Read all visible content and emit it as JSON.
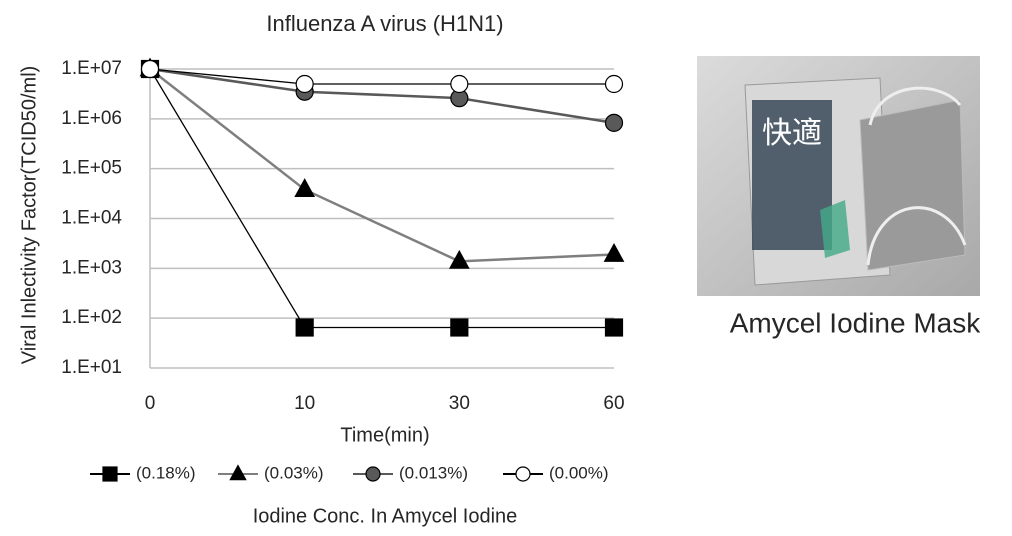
{
  "chart_data": {
    "type": "line",
    "title": "Influenza A virus (H1N1)",
    "x_label": "Time(min)",
    "y_label": "Viral Inlectivity Factor(TCID50/ml)",
    "legend_title": "Iodine Conc. In Amycel Iodine",
    "categories": [
      "0",
      "10",
      "30",
      "60"
    ],
    "log_scale": true,
    "grid": true,
    "legend": "bottom",
    "ylim": [
      10,
      10000000
    ],
    "yticks": [
      {
        "value": 10,
        "label": "1.E+01"
      },
      {
        "value": 100,
        "label": "1.E+02"
      },
      {
        "value": 1000,
        "label": "1.E+03"
      },
      {
        "value": 10000,
        "label": "1.E+04"
      },
      {
        "value": 100000,
        "label": "1.E+05"
      },
      {
        "value": 1000000,
        "label": "1.E+06"
      },
      {
        "value": 10000000,
        "label": "1.E+07"
      }
    ],
    "series": [
      {
        "name": "(0.18%)",
        "color": "#000000",
        "marker": "square",
        "marker_fill": "#000000",
        "values": [
          10000000,
          65,
          65,
          65
        ]
      },
      {
        "name": "(0.03%)",
        "color": "#7f7f7f",
        "marker": "triangle",
        "marker_fill": "#000000",
        "values": [
          10000000,
          38000,
          1380,
          1900
        ]
      },
      {
        "name": "(0.013%)",
        "color": "#595959",
        "marker": "circle",
        "marker_fill": "#595959",
        "values": [
          10000000,
          3500000,
          2600000,
          830000
        ]
      },
      {
        "name": "(0.00%)",
        "color": "#000000",
        "marker": "circle",
        "marker_fill": "#ffffff",
        "values": [
          10000000,
          5000000,
          5000000,
          5000000
        ]
      }
    ]
  },
  "photo": {
    "caption": "Amycel  Iodine Mask"
  }
}
